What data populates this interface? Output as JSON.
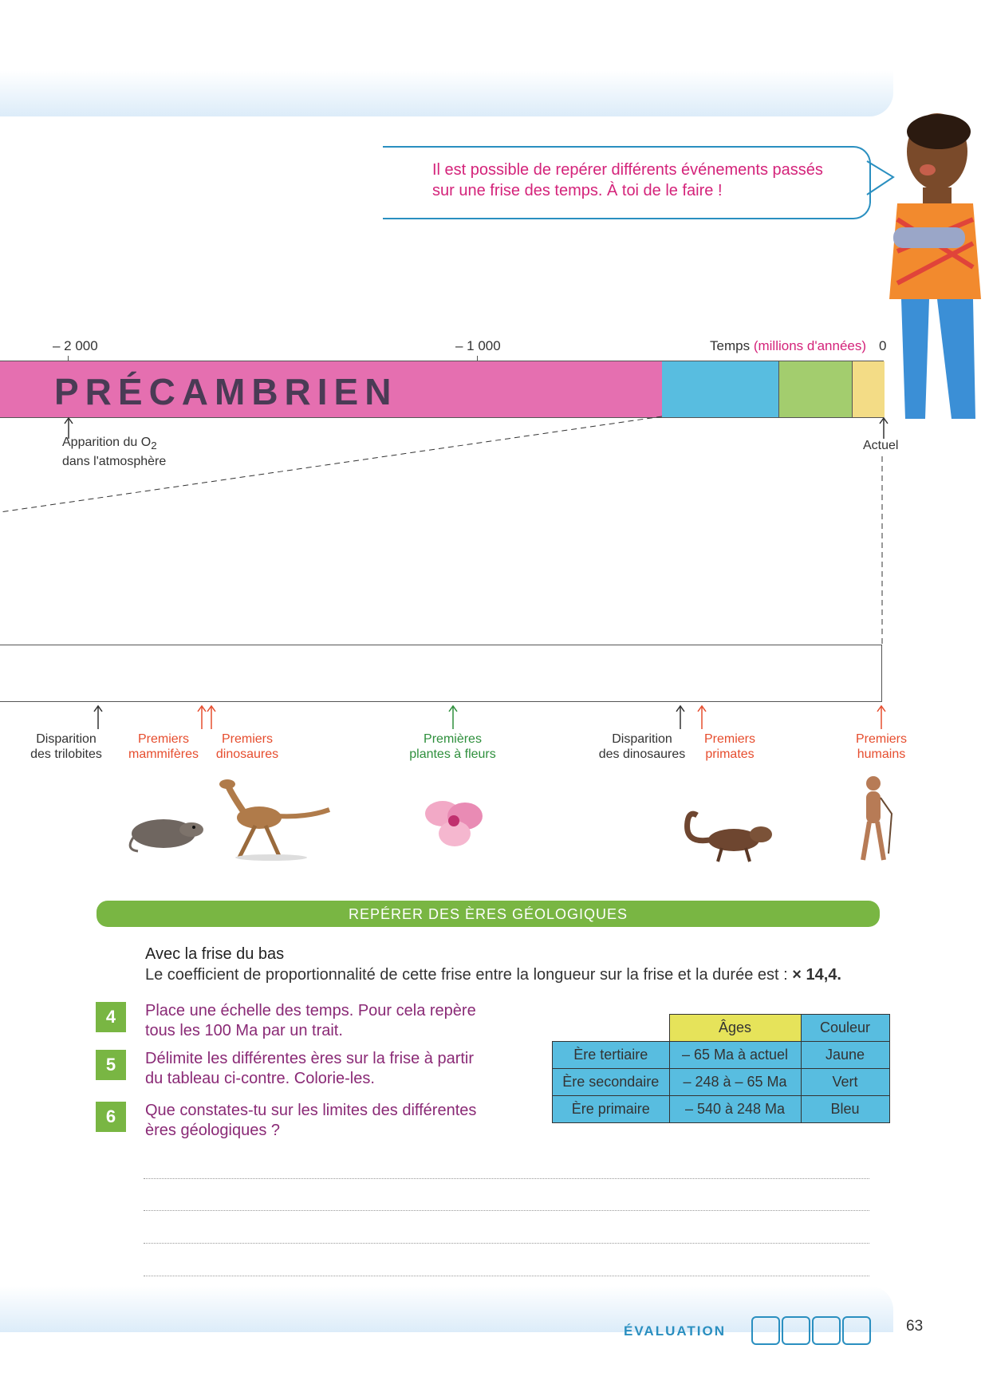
{
  "speech": {
    "line1": "Il est possible de repérer différents événements passés",
    "line2": "sur une frise des temps. À toi de le faire !"
  },
  "timeline_top": {
    "tick_left": "– 2 000",
    "tick_mid": "– 1 000",
    "axis_label": "Temps",
    "axis_unit": "(millions d'années)",
    "tick_end": "0",
    "precambrian_label": "PRÉCAMBRIEN",
    "oxygen_line1": "Apparition du O",
    "oxygen_sub": "2",
    "oxygen_line2": "dans l'atmosphère",
    "present_label": "Actuel",
    "colors": {
      "precambrian": "#e56fb0",
      "primary": "#58bde0",
      "secondary": "#a3cd6e",
      "tertiary": "#f3dc86"
    }
  },
  "events": [
    {
      "line1": "Disparition",
      "line2": "des trilobites",
      "color": "dark"
    },
    {
      "line1": "Premiers",
      "line2": "mammifères",
      "color": "red"
    },
    {
      "line1": "Premiers",
      "line2": "dinosaures",
      "color": "red"
    },
    {
      "line1": "Premières",
      "line2": "plantes à fleurs",
      "color": "green"
    },
    {
      "line1": "Disparition",
      "line2": "des dinosaures",
      "color": "dark"
    },
    {
      "line1": "Premiers",
      "line2": "primates",
      "color": "red"
    },
    {
      "line1": "Premiers",
      "line2": "humains",
      "color": "red"
    }
  ],
  "section_title": "REPÉRER DES ÈRES GÉOLOGIQUES",
  "intro": {
    "heading": "Avec la frise du bas",
    "sentence": "Le coefficient de proportionnalité de cette frise entre la longueur sur la frise et la durée est :",
    "factor": "× 14,4."
  },
  "questions": [
    {
      "num": "4",
      "line1": "Place une échelle des temps. Pour cela repère",
      "line2": "tous les 100 Ma par un trait."
    },
    {
      "num": "5",
      "line1": "Délimite les différentes ères sur la frise à partir",
      "line2": "du tableau ci-contre. Colorie-les."
    },
    {
      "num": "6",
      "line1": "Que constates-tu sur les limites des différentes",
      "line2": "ères géologiques ?"
    }
  ],
  "table": {
    "headers": [
      "Âges",
      "Couleur"
    ],
    "rows": [
      {
        "era": "Ère tertiaire",
        "age": "– 65 Ma à actuel",
        "color": "Jaune"
      },
      {
        "era": "Ère secondaire",
        "age": "– 248 à – 65 Ma",
        "color": "Vert"
      },
      {
        "era": "Ère primaire",
        "age": "– 540 à 248 Ma",
        "color": "Bleu"
      }
    ]
  },
  "footer": {
    "label": "ÉVALUATION",
    "page": "63"
  }
}
